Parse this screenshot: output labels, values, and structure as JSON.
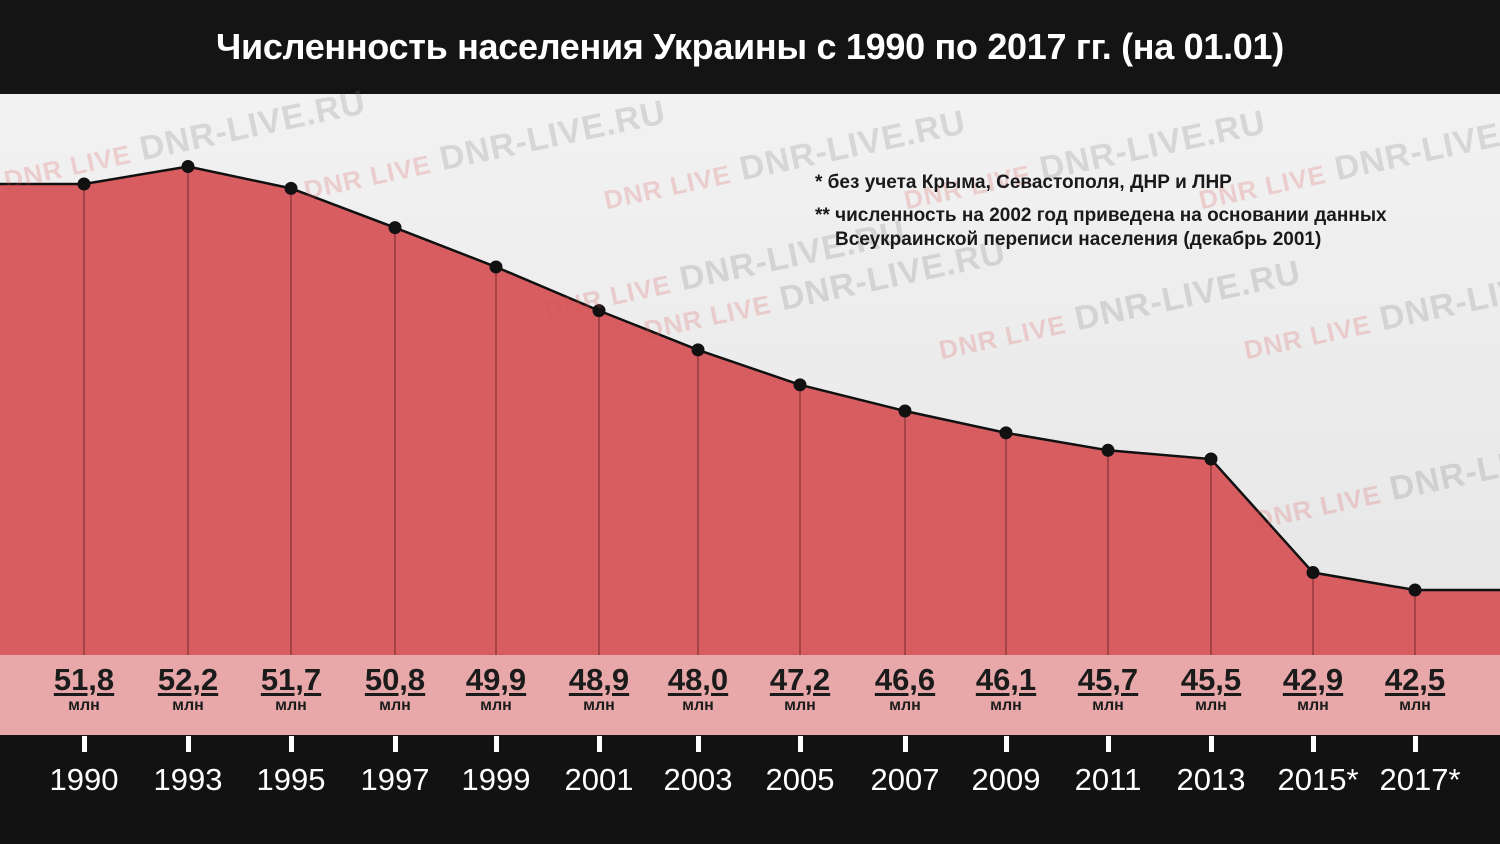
{
  "title": "Численность населения Украины с 1990 по 2017 гг.  (на 01.01)",
  "notes": [
    "* без учета Крыма, Севастополя, ДНР и ЛНР",
    "** численность на 2002 год приведена на основании данных Всеукраинской переписи населения (декабрь 2001)"
  ],
  "watermark": {
    "logo": "DNR LIVE",
    "text": "DNR-LIVE.RU"
  },
  "colors": {
    "area": "#d75d60",
    "band": "#e8a8a9",
    "line": "#111111",
    "background": "#121212"
  },
  "chart_data": {
    "type": "area",
    "x": [
      "1990",
      "1993",
      "1995",
      "1997",
      "1999",
      "2001",
      "2003",
      "2005",
      "2007",
      "2009",
      "2011",
      "2013",
      "2015*",
      "2017*"
    ],
    "value_labels": [
      "51,8",
      "52,2",
      "51,7",
      "50,8",
      "49,9",
      "48,9",
      "48,0",
      "47,2",
      "46,6",
      "46,1",
      "45,7",
      "45,5",
      "42,9",
      "42,5"
    ],
    "values": [
      51.8,
      52.2,
      51.7,
      50.8,
      49.9,
      48.9,
      48.0,
      47.2,
      46.6,
      46.1,
      45.7,
      45.5,
      42.9,
      42.5
    ],
    "unit": "млн",
    "ylim": [
      37.6,
      56.0
    ],
    "grid": false
  }
}
